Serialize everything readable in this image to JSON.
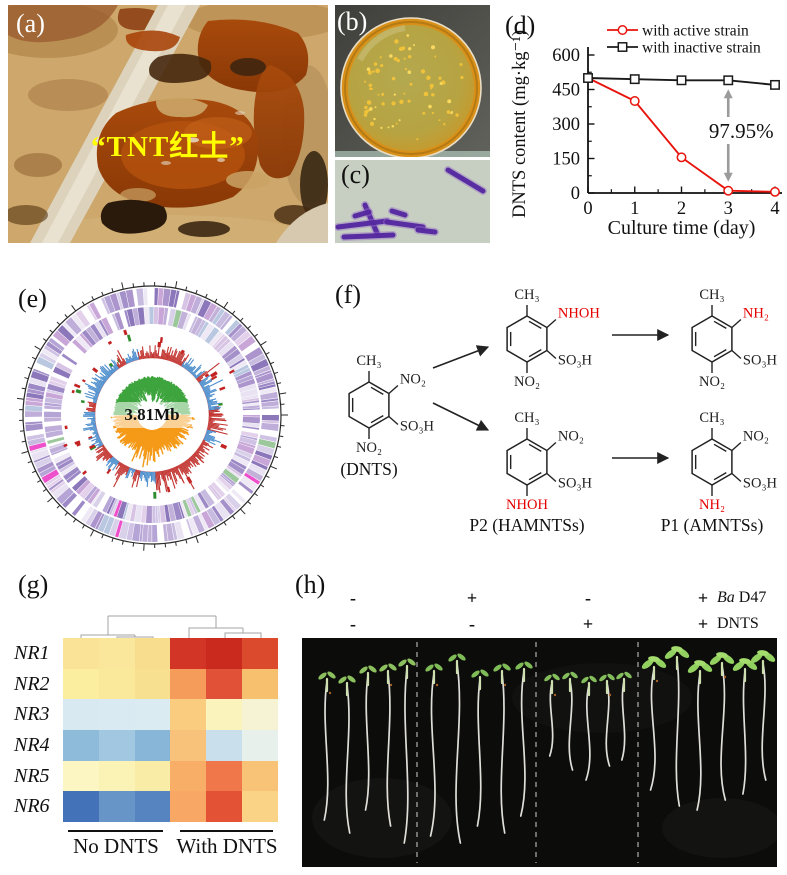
{
  "chart_data": [
    {
      "type": "line",
      "panel": "d",
      "title": "",
      "xlabel": "Culture time (day)",
      "ylabel": "DNTS content (mg·kg⁻¹)",
      "x": [
        0,
        1,
        2,
        3,
        4
      ],
      "xlim": [
        0,
        4
      ],
      "ylim": [
        0,
        600
      ],
      "xticks": [
        0,
        1,
        2,
        3,
        4
      ],
      "yticks": [
        0,
        150,
        300,
        450,
        600
      ],
      "grid": false,
      "legend_position": "top-right",
      "series": [
        {
          "name": "with active strain",
          "color": "#e8130c",
          "marker": "circle",
          "values": [
            500,
            400,
            155,
            10,
            5
          ]
        },
        {
          "name": "with inactive strain",
          "color": "#1a1a1a",
          "marker": "square",
          "values": [
            500,
            495,
            490,
            490,
            470
          ]
        }
      ],
      "annotation": {
        "text": "97.95%",
        "x": 3,
        "arrow_color": "#9b9b9b"
      }
    },
    {
      "type": "heatmap",
      "panel": "g",
      "rows": [
        "NR1",
        "NR2",
        "NR3",
        "NR4",
        "NR5",
        "NR6"
      ],
      "column_groups": [
        {
          "label": "No DNTS",
          "columns": 3
        },
        {
          "label": "With DNTS",
          "columns": 3
        }
      ],
      "colors": [
        [
          "#fae396",
          "#fae79c",
          "#f8dd8e",
          "#d23426",
          "#ca2a1e",
          "#dc4a2e"
        ],
        [
          "#fcee9f",
          "#fae89b",
          "#f8e091",
          "#f59c5b",
          "#e05138",
          "#f7c06f"
        ],
        [
          "#d9e9f1",
          "#d9eaf2",
          "#dbebf2",
          "#facc80",
          "#fbf3bc",
          "#f5f3d3"
        ],
        [
          "#8fbbda",
          "#a2c7e0",
          "#87b6d9",
          "#f9c27a",
          "#c9dfec",
          "#e7f0ea"
        ],
        [
          "#fcf6c3",
          "#fbf2b6",
          "#f9eca6",
          "#f9ae67",
          "#f0774a",
          "#f9c377"
        ],
        [
          "#4372b8",
          "#6795c8",
          "#5584c1",
          "#f9a765",
          "#e35234",
          "#fad386"
        ]
      ]
    }
  ],
  "panels": {
    "a": "(a)",
    "b": "(b)",
    "c": "(c)",
    "d": "(d)",
    "e": "(e)",
    "f": "(f)",
    "g": "(g)",
    "h": "(h)"
  },
  "panel_a": {
    "caption": "“TNT红土”",
    "caption_color": "#ffff00"
  },
  "panel_e": {
    "genome_size_label": "3.81Mb"
  },
  "panel_f": {
    "substituents": {
      "methyl": "CH₃",
      "nitro": "NO₂",
      "sulfonic": "SO₃H",
      "hydroxylamino": "NHOH",
      "amino": "NH₂"
    },
    "captions": {
      "substrate": "(DNTS)",
      "intermediate": "P2 (HAMNTSs)",
      "product": "P1 (AMNTSs)"
    },
    "highlight_color": "#e50000"
  },
  "panel_h": {
    "rows": [
      {
        "symbols": [
          "-",
          "+",
          "-",
          "+"
        ],
        "label_italic": "Ba",
        "label_rest": " D47"
      },
      {
        "symbols": [
          "-",
          "-",
          "+",
          "+"
        ],
        "label_italic": "",
        "label_rest": "DNTS"
      }
    ]
  }
}
